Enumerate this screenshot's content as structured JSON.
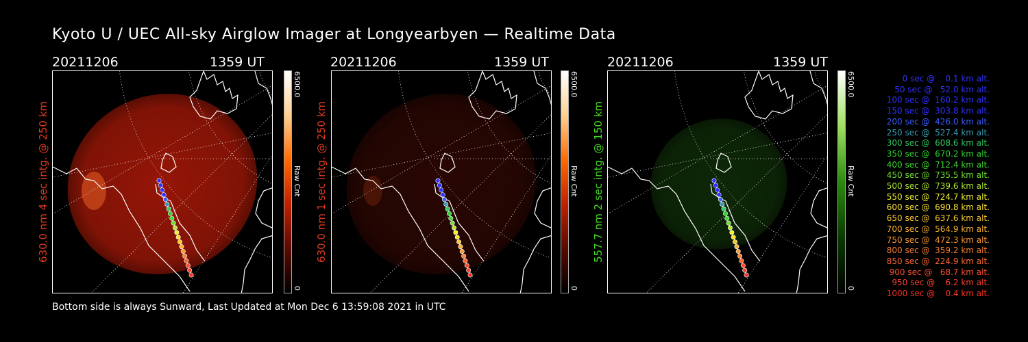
{
  "title": "Kyoto U / UEC All-sky Airglow Imager at Longyearbyen — Realtime Data",
  "panels": [
    {
      "date": "20211206",
      "time": "1359 UT",
      "ylabel": "630.0 nm 4 sec intg. @ 250 km",
      "label_color": "#e03a1e",
      "cbar_max": "6500.0",
      "cbar_min": "0",
      "cbar_unit": "Raw Cnt",
      "glow_color": "#b01a08",
      "glow_level": 0.85
    },
    {
      "date": "20211206",
      "time": "1359 UT",
      "ylabel": "630.0 nm 1 sec intg. @ 250 km",
      "label_color": "#e03a1e",
      "cbar_max": "6500.0",
      "cbar_min": "0",
      "cbar_unit": "Raw Cnt",
      "glow_color": "#4a0c04",
      "glow_level": 0.55
    },
    {
      "date": "20211206",
      "time": "1359 UT",
      "ylabel": "557.7 nm 2 sec intg. @ 150 km",
      "label_color": "#44dd22",
      "cbar_max": "6500.0",
      "cbar_min": "0",
      "cbar_unit": "Raw Cnt",
      "glow_color": "#17420c",
      "glow_level": 0.6
    }
  ],
  "footer": "Bottom side is always Sunward, Last Updated at Mon Dec  6 13:59:08 2021 in UTC",
  "legend": [
    {
      "text": "   0 sec @    0.1 km alt.",
      "color": "#3030ff"
    },
    {
      "text": "  50 sec @   52.0 km alt.",
      "color": "#3030ff"
    },
    {
      "text": " 100 sec @  160.2 km alt.",
      "color": "#3030ff"
    },
    {
      "text": " 150 sec @  303.8 km alt.",
      "color": "#3030ff"
    },
    {
      "text": " 200 sec @  426.0 km alt.",
      "color": "#3a5cff"
    },
    {
      "text": " 250 sec @  527.4 km alt.",
      "color": "#3a9ab0"
    },
    {
      "text": " 300 sec @  608.6 km alt.",
      "color": "#30c860"
    },
    {
      "text": " 350 sec @  670.2 km alt.",
      "color": "#30d030"
    },
    {
      "text": " 400 sec @  712.4 km alt.",
      "color": "#40d830"
    },
    {
      "text": " 450 sec @  735.5 km alt.",
      "color": "#70e030"
    },
    {
      "text": " 500 sec @  739.6 km alt.",
      "color": "#b0e830"
    },
    {
      "text": " 550 sec @  724.7 km alt.",
      "color": "#f0f030"
    },
    {
      "text": " 600 sec @  690.8 km alt.",
      "color": "#f8e030"
    },
    {
      "text": " 650 sec @  637.6 km alt.",
      "color": "#f8c830"
    },
    {
      "text": " 700 sec @  564.9 km alt.",
      "color": "#f8b030"
    },
    {
      "text": " 750 sec @  472.3 km alt.",
      "color": "#f89830"
    },
    {
      "text": " 800 sec @  359.2 km alt.",
      "color": "#f88030"
    },
    {
      "text": " 850 sec @  224.9 km alt.",
      "color": "#f86830"
    },
    {
      "text": " 900 sec @   68.7 km alt.",
      "color": "#f85030"
    },
    {
      "text": " 950 sec @    6.2 km alt.",
      "color": "#f84030"
    },
    {
      "text": "1000 sec @    0.4 km alt.",
      "color": "#f83020"
    }
  ]
}
